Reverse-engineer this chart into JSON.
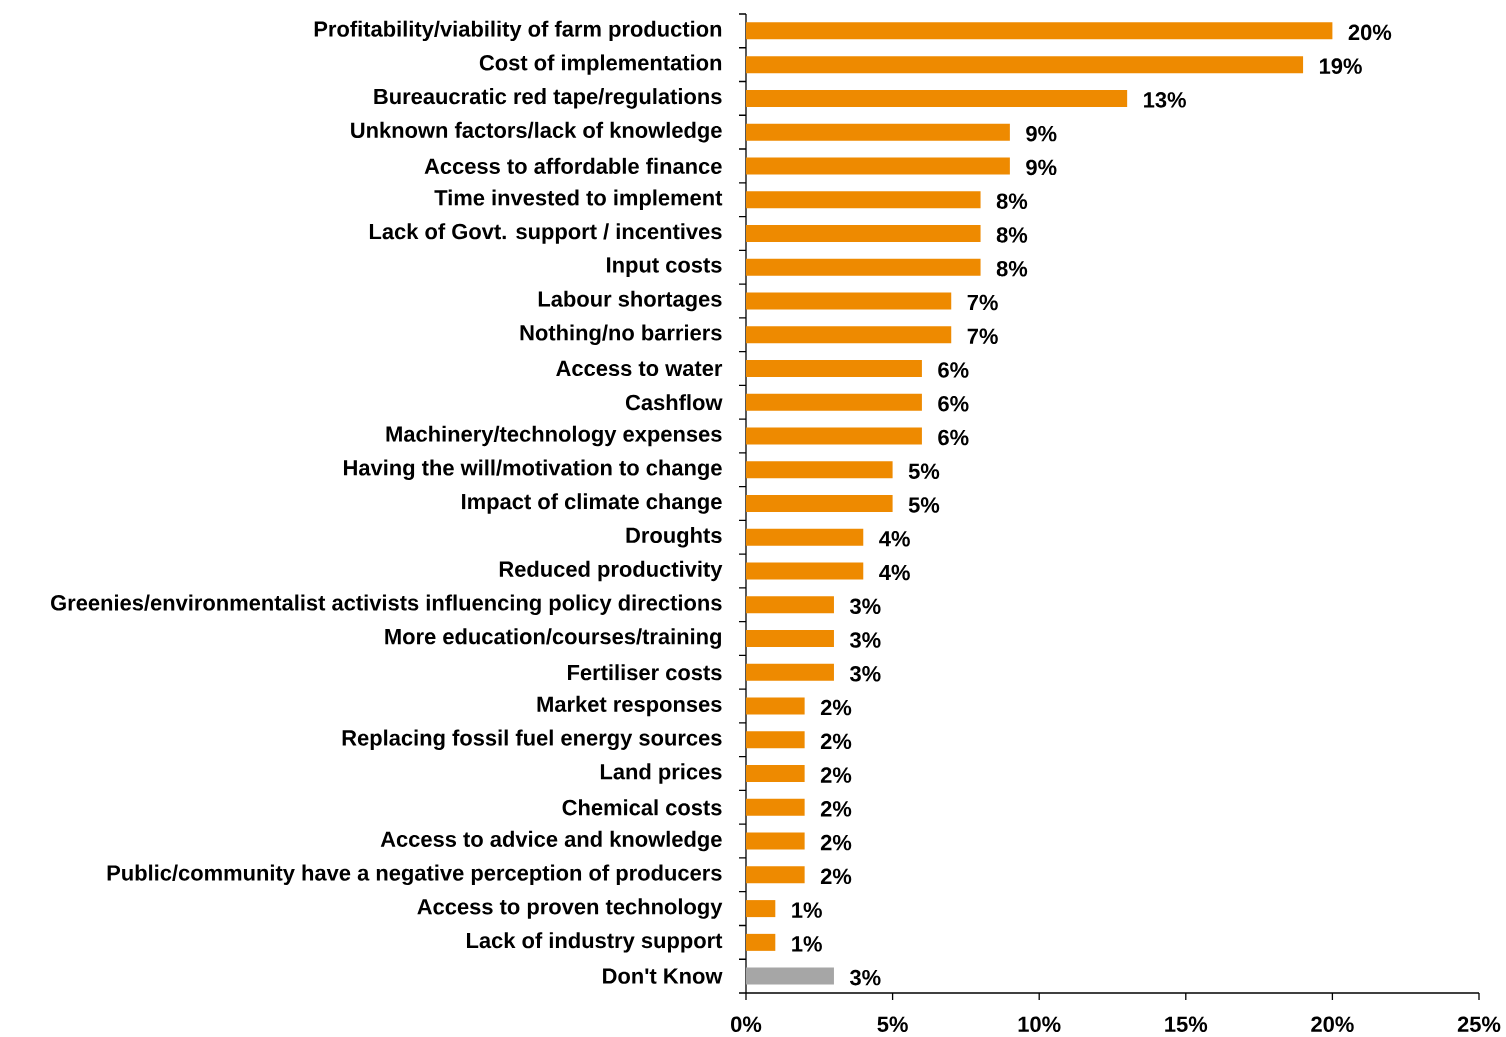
{
  "chart_data": {
    "type": "bar",
    "orientation": "horizontal",
    "categories": [
      "Profitability/viability of farm production",
      "Cost of implementation",
      "Bureaucratic red tape/regulations",
      "Unknown factors/lack of knowledge",
      "Access to affordable finance",
      "Time invested to implement",
      "Lack of Govt. support / incentives",
      "Input costs",
      "Labour shortages",
      "Nothing/no barriers",
      "Access to water",
      "Cashflow",
      "Machinery/technology expenses",
      "Having the will/motivation to change",
      "Impact of climate change",
      "Droughts",
      "Reduced productivity",
      "Greenies/environmentalist activists influencing policy directions",
      "More education/courses/training",
      "Fertiliser costs",
      "Market responses",
      "Replacing fossil fuel energy sources",
      "Land prices",
      "Chemical costs",
      "Access to advice and knowledge",
      "Public/community have a negative perception of producers",
      "Access to proven technology",
      "Lack of industry support",
      "Don't Know"
    ],
    "values": [
      20,
      19,
      13,
      9,
      9,
      8,
      8,
      8,
      7,
      7,
      6,
      6,
      6,
      5,
      5,
      4,
      4,
      3,
      3,
      3,
      2,
      2,
      2,
      2,
      2,
      2,
      1,
      1,
      3
    ],
    "colors": [
      "#ee8a00",
      "#ee8a00",
      "#ee8a00",
      "#ee8a00",
      "#ee8a00",
      "#ee8a00",
      "#ee8a00",
      "#ee8a00",
      "#ee8a00",
      "#ee8a00",
      "#ee8a00",
      "#ee8a00",
      "#ee8a00",
      "#ee8a00",
      "#ee8a00",
      "#ee8a00",
      "#ee8a00",
      "#ee8a00",
      "#ee8a00",
      "#ee8a00",
      "#ee8a00",
      "#ee8a00",
      "#ee8a00",
      "#ee8a00",
      "#ee8a00",
      "#ee8a00",
      "#ee8a00",
      "#ee8a00",
      "#a6a6a6"
    ],
    "value_labels": [
      "20%",
      "19%",
      "13%",
      "9%",
      "9%",
      "8%",
      "8%",
      "8%",
      "7%",
      "7%",
      "6%",
      "6%",
      "6%",
      "5%",
      "5%",
      "4%",
      "4%",
      "3%",
      "3%",
      "3%",
      "2%",
      "2%",
      "2%",
      "2%",
      "2%",
      "2%",
      "1%",
      "1%",
      "3%"
    ],
    "xlim": [
      0,
      25
    ],
    "xticks": [
      {
        "value": 0,
        "label": "0%"
      },
      {
        "value": 5,
        "label": "5%"
      },
      {
        "value": 10,
        "label": "10%"
      },
      {
        "value": 15,
        "label": "15%"
      },
      {
        "value": 20,
        "label": "20%"
      },
      {
        "value": 25,
        "label": "25%"
      }
    ]
  }
}
